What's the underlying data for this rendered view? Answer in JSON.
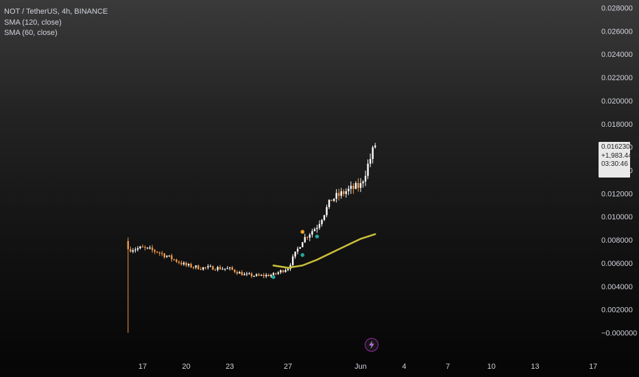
{
  "legend": {
    "symbol": "NOT / TetherUS, 4h, BINANCE",
    "sma1": "SMA (120, close)",
    "sma2": "SMA (60, close)"
  },
  "price_badge": {
    "price": "0.016230",
    "change": "+1,983.44%",
    "countdown": "03:30:46"
  },
  "colors": {
    "up": "#ffffff",
    "down": "#f29a4a",
    "sma60": "#c7bd3a",
    "marker_teal": "#26a69a",
    "marker_orange": "#f5a623",
    "event": "#9c27b0"
  },
  "event_icon": "lightning-bolt-icon",
  "chart_data": {
    "type": "candlestick",
    "y_axis": {
      "ticks": [
        "0.028000",
        "0.026000",
        "0.024000",
        "0.022000",
        "0.020000",
        "0.018000",
        "0.016000",
        "0.014000",
        "0.012000",
        "0.010000",
        "0.008000",
        "0.006000",
        "0.004000",
        "0.002000",
        "−0.000000"
      ],
      "range": [
        0,
        0.028
      ],
      "position": "right"
    },
    "x_axis": {
      "ticks": [
        "17",
        "20",
        "23",
        "27",
        "Jun",
        "4",
        "7",
        "10",
        "13",
        "17"
      ],
      "tick_dates": [
        "2024-05-17",
        "2024-05-20",
        "2024-05-23",
        "2024-05-27",
        "2024-06-01",
        "2024-06-04",
        "2024-06-07",
        "2024-06-10",
        "2024-06-13",
        "2024-06-17"
      ]
    },
    "last_price": 0.01623,
    "first_candle": {
      "date": "2024-05-16",
      "open": 0.0079,
      "high": 0.0082,
      "low": 0.0,
      "close": 0.0072
    },
    "close_path": [
      [
        "2024-05-16",
        0.0072
      ],
      [
        "2024-05-17",
        0.0073
      ],
      [
        "2024-05-18",
        0.007
      ],
      [
        "2024-05-19",
        0.0064
      ],
      [
        "2024-05-20",
        0.0058
      ],
      [
        "2024-05-21",
        0.0056
      ],
      [
        "2024-05-22",
        0.0056
      ],
      [
        "2024-05-23",
        0.0055
      ],
      [
        "2024-05-24",
        0.005
      ],
      [
        "2024-05-25",
        0.0049
      ],
      [
        "2024-05-26",
        0.005
      ],
      [
        "2024-05-27",
        0.0056
      ],
      [
        "2024-05-28",
        0.008
      ],
      [
        "2024-05-29",
        0.0092
      ],
      [
        "2024-05-30",
        0.0115
      ],
      [
        "2024-05-31",
        0.0122
      ],
      [
        "2024-06-01",
        0.0127
      ],
      [
        "2024-06-02",
        0.0162
      ]
    ],
    "series": [
      {
        "name": "SMA (60, close)",
        "points": [
          [
            "2024-05-26",
            0.0058
          ],
          [
            "2024-05-27",
            0.0056
          ],
          [
            "2024-05-28",
            0.0058
          ],
          [
            "2024-05-29",
            0.0063
          ],
          [
            "2024-05-30",
            0.0069
          ],
          [
            "2024-05-31",
            0.0075
          ],
          [
            "2024-06-01",
            0.0081
          ],
          [
            "2024-06-02",
            0.0085
          ]
        ]
      }
    ],
    "markers": [
      {
        "date": "2024-05-26",
        "value": 0.0048,
        "color": "teal"
      },
      {
        "date": "2024-05-28",
        "value": 0.0067,
        "color": "teal"
      },
      {
        "date": "2024-05-28",
        "value": 0.0087,
        "color": "orange"
      },
      {
        "date": "2024-05-29",
        "value": 0.0083,
        "color": "teal"
      }
    ]
  }
}
